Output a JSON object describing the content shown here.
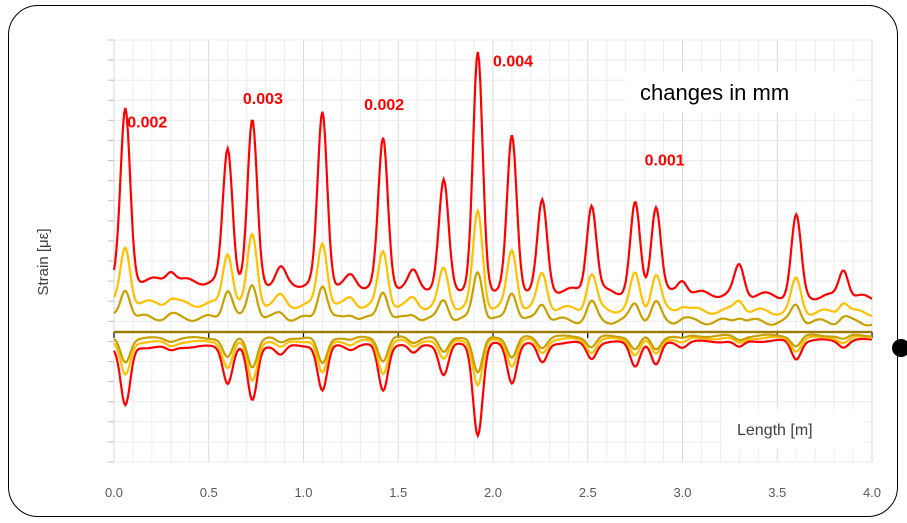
{
  "chart_data": {
    "type": "line",
    "title": "changes in mm",
    "xlabel": "Length [m]",
    "ylabel": "Strain [με]",
    "xlim": [
      0.0,
      4.0
    ],
    "x_ticks": [
      "0.0",
      "0.5",
      "1.0",
      "1.5",
      "2.0",
      "2.5",
      "3.0",
      "3.5",
      "4.0"
    ],
    "grid": true,
    "legend": "none",
    "peak_x": [
      0.06,
      0.3,
      0.6,
      0.73,
      0.88,
      1.1,
      1.25,
      1.42,
      1.58,
      1.74,
      1.92,
      2.1,
      2.26,
      2.52,
      2.75,
      2.86,
      3.0,
      3.3,
      3.6,
      3.85
    ],
    "series": [
      {
        "color": "#ff0000",
        "baseline": 0.18,
        "peaks": [
          0.58,
          0.04,
          0.46,
          0.55,
          0.05,
          0.59,
          0.03,
          0.5,
          0.05,
          0.36,
          0.8,
          0.52,
          0.3,
          0.3,
          0.3,
          0.3,
          0.05,
          0.1,
          0.27,
          0.1
        ],
        "neg_baseline": -0.12,
        "neg_peaks": [
          -0.45,
          -0.03,
          -0.28,
          -0.42,
          -0.07,
          -0.35,
          -0.03,
          -0.35,
          -0.07,
          -0.24,
          -0.7,
          -0.3,
          -0.15,
          -0.12,
          -0.18,
          -0.18,
          -0.04,
          -0.05,
          -0.14,
          -0.05
        ]
      },
      {
        "color": "#ffc000",
        "baseline": 0.1,
        "peaks": [
          0.19,
          0.02,
          0.18,
          0.24,
          0.03,
          0.22,
          0.03,
          0.19,
          0.03,
          0.13,
          0.33,
          0.2,
          0.12,
          0.12,
          0.12,
          0.12,
          0.02,
          0.04,
          0.11,
          0.04
        ],
        "neg_baseline": -0.08,
        "neg_peaks": [
          -0.25,
          -0.03,
          -0.2,
          -0.3,
          -0.05,
          -0.25,
          -0.03,
          -0.25,
          -0.05,
          -0.15,
          -0.35,
          -0.2,
          -0.1,
          -0.1,
          -0.12,
          -0.12,
          -0.03,
          -0.04,
          -0.1,
          -0.04
        ]
      },
      {
        "color": "#c8a000",
        "baseline": 0.05,
        "peaks": [
          0.1,
          0.01,
          0.1,
          0.12,
          0.02,
          0.12,
          0.02,
          0.1,
          0.02,
          0.07,
          0.17,
          0.1,
          0.06,
          0.06,
          0.06,
          0.06,
          0.01,
          0.02,
          0.06,
          0.02
        ],
        "neg_baseline": -0.05,
        "neg_peaks": [
          -0.18,
          -0.02,
          -0.15,
          -0.22,
          -0.04,
          -0.2,
          -0.02,
          -0.18,
          -0.04,
          -0.12,
          -0.28,
          -0.16,
          -0.08,
          -0.08,
          -0.1,
          -0.1,
          -0.02,
          -0.03,
          -0.08,
          -0.03
        ]
      },
      {
        "color": "#9a7b00",
        "baseline": 0.0,
        "peaks": [],
        "neg_baseline": 0.0,
        "neg_peaks": []
      }
    ],
    "annotations": [
      {
        "text": "0.002",
        "x": 0.07,
        "y": 0.7
      },
      {
        "text": "0.003",
        "x": 0.68,
        "y": 0.78
      },
      {
        "text": "0.002",
        "x": 1.32,
        "y": 0.76
      },
      {
        "text": "0.004",
        "x": 2.0,
        "y": 0.91
      },
      {
        "text": "0.001",
        "x": 2.8,
        "y": 0.57
      }
    ]
  }
}
